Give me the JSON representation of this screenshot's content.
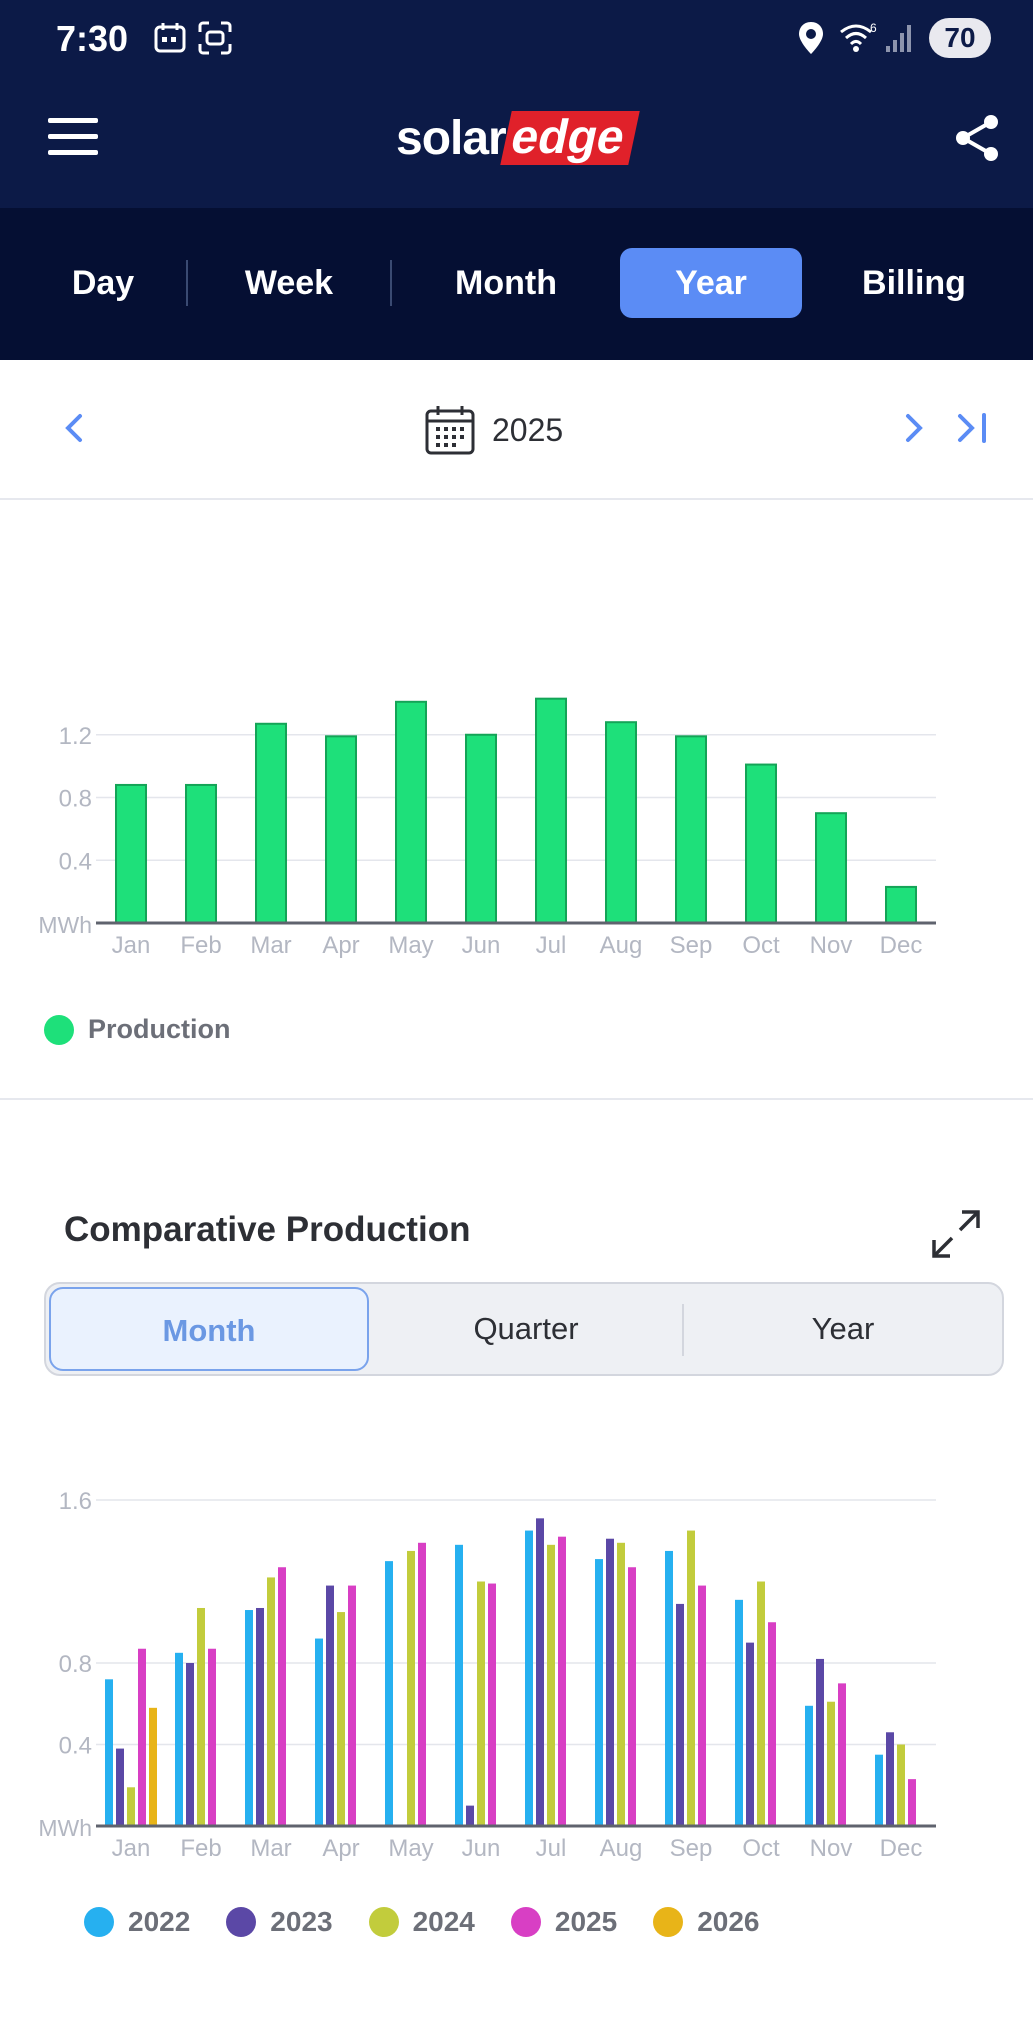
{
  "status_bar": {
    "time": "7:30",
    "battery": "70"
  },
  "header": {
    "logo_part1": "solar",
    "logo_part2": "edge"
  },
  "period_tabs": [
    {
      "label": "Day",
      "active": false
    },
    {
      "label": "Week",
      "active": false
    },
    {
      "label": "Month",
      "active": false
    },
    {
      "label": "Year",
      "active": true
    },
    {
      "label": "Billing",
      "active": false
    }
  ],
  "date_nav": {
    "label": "2025"
  },
  "colors": {
    "header_bg": "#0c1a47",
    "tabs_bg": "#050f33",
    "active_tab": "#5b8cf5",
    "production": "#1ee07a",
    "series": [
      "#26b0f0",
      "#5b48a6",
      "#c2cc3c",
      "#d83fc4",
      "#e8b418"
    ]
  },
  "production_legend": "Production",
  "comparative": {
    "title": "Comparative Production",
    "segments": [
      {
        "label": "Month",
        "active": true
      },
      {
        "label": "Quarter",
        "active": false
      },
      {
        "label": "Year",
        "active": false
      }
    ]
  },
  "chart_data": [
    {
      "type": "bar",
      "title": "",
      "ylabel": "MWh",
      "categories": [
        "Jan",
        "Feb",
        "Mar",
        "Apr",
        "May",
        "Jun",
        "Jul",
        "Aug",
        "Sep",
        "Oct",
        "Nov",
        "Dec"
      ],
      "series": [
        {
          "name": "Production",
          "values": [
            0.88,
            0.88,
            1.27,
            1.19,
            1.41,
            1.2,
            1.43,
            1.28,
            1.19,
            1.01,
            0.7,
            0.23
          ]
        }
      ],
      "y_ticks": [
        "0.4",
        "0.8",
        "1.2"
      ],
      "ylim": [
        0,
        1.6
      ],
      "grid": true,
      "legend": "bottom-left"
    },
    {
      "type": "bar",
      "title": "",
      "ylabel": "MWh",
      "categories": [
        "Jan",
        "Feb",
        "Mar",
        "Apr",
        "May",
        "Jun",
        "Jul",
        "Aug",
        "Sep",
        "Oct",
        "Nov",
        "Dec"
      ],
      "series": [
        {
          "name": "2022",
          "values": [
            0.72,
            0.85,
            1.06,
            0.92,
            1.3,
            1.38,
            1.45,
            1.31,
            1.35,
            1.11,
            0.59,
            0.35
          ]
        },
        {
          "name": "2023",
          "values": [
            0.38,
            0.8,
            1.07,
            1.18,
            null,
            0.1,
            1.51,
            1.41,
            1.09,
            0.9,
            0.82,
            0.46
          ]
        },
        {
          "name": "2024",
          "values": [
            0.19,
            1.07,
            1.22,
            1.05,
            1.35,
            1.2,
            1.38,
            1.39,
            1.45,
            1.2,
            0.61,
            0.4
          ]
        },
        {
          "name": "2025",
          "values": [
            0.87,
            0.87,
            1.27,
            1.18,
            1.39,
            1.19,
            1.42,
            1.27,
            1.18,
            1.0,
            0.7,
            0.23
          ]
        },
        {
          "name": "2026",
          "values": [
            0.58,
            null,
            null,
            null,
            null,
            null,
            null,
            null,
            null,
            null,
            null,
            null
          ]
        }
      ],
      "y_ticks": [
        "0.4",
        "0.8",
        "1.6"
      ],
      "ylim": [
        0,
        1.6
      ],
      "grid": true,
      "legend": "bottom"
    }
  ]
}
